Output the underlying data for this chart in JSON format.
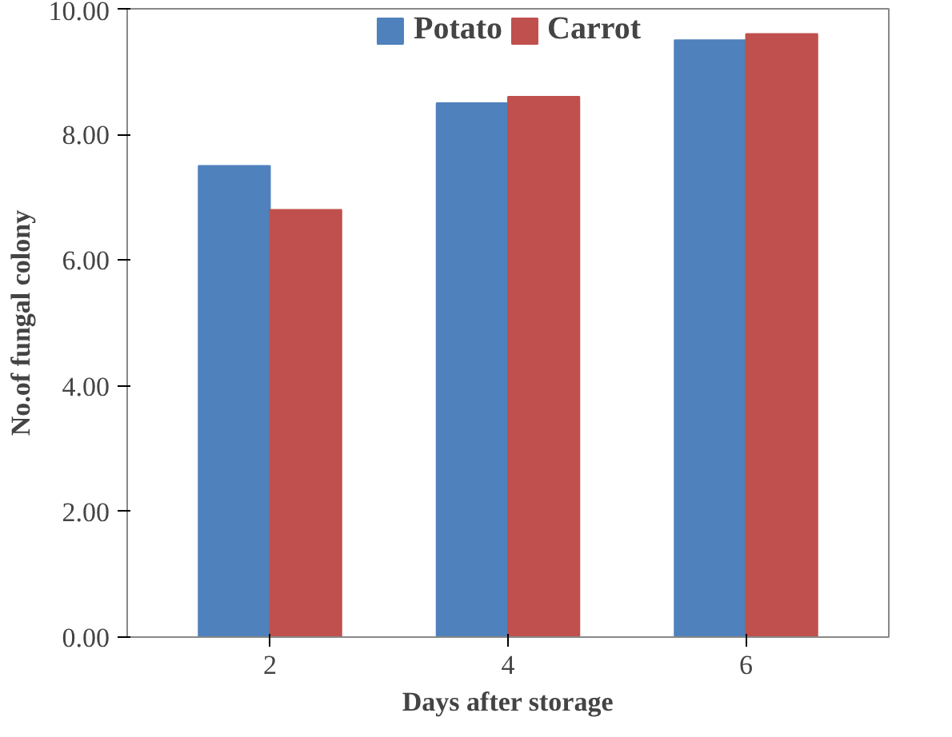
{
  "chart_data": {
    "type": "bar",
    "xlabel": "Days after storage",
    "ylabel": "No.of fungal colony",
    "categories": [
      "2",
      "4",
      "6"
    ],
    "series": [
      {
        "name": "Potato",
        "color": "#4f81bd",
        "values": [
          7.5,
          8.5,
          9.5
        ]
      },
      {
        "name": "Carrot",
        "color": "#c0504d",
        "values": [
          6.8,
          8.6,
          9.6
        ]
      }
    ],
    "ylim": [
      0,
      10
    ],
    "yticks": [
      {
        "value": 0,
        "label": "0.00"
      },
      {
        "value": 2,
        "label": "2.00"
      },
      {
        "value": 4,
        "label": "4.00"
      },
      {
        "value": 6,
        "label": "6.00"
      },
      {
        "value": 8,
        "label": "8.00"
      },
      {
        "value": 10,
        "label": "10.00"
      }
    ],
    "grid": false,
    "legend": "top"
  }
}
